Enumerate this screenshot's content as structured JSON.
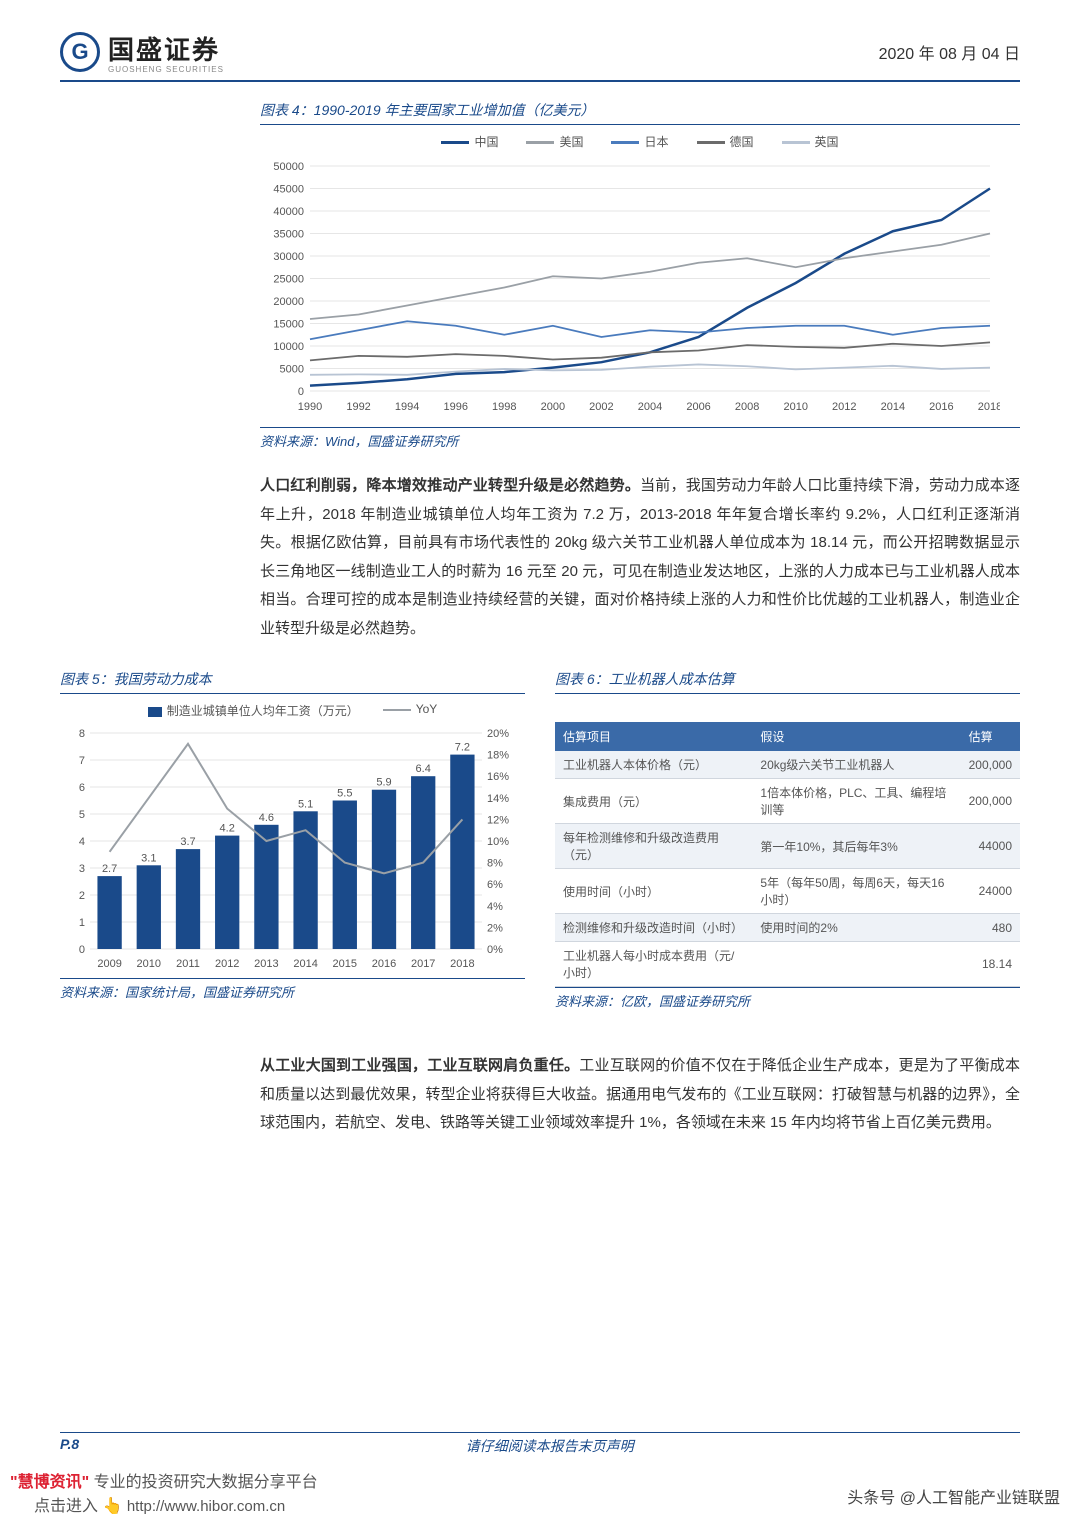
{
  "header": {
    "company": "国盛证券",
    "company_sub": "GUOSHENG SECURITIES",
    "logo_letter": "G",
    "date": "2020 年 08 月 04 日"
  },
  "chart4": {
    "title": "图表 4：1990-2019 年主要国家工业增加值（亿美元）",
    "type": "line",
    "legend": [
      "中国",
      "美国",
      "日本",
      "德国",
      "英国"
    ],
    "years": [
      1990,
      1992,
      1994,
      1996,
      1998,
      2000,
      2002,
      2004,
      2006,
      2008,
      2010,
      2012,
      2014,
      2016,
      2018
    ],
    "ylim": [
      0,
      50000
    ],
    "ytick_step": 5000,
    "colors": {
      "中国": "#1a4a8a",
      "美国": "#9aa0a6",
      "日本": "#4a7bbd",
      "德国": "#6b6b6b",
      "英国": "#b8c4d4"
    },
    "background_color": "#ffffff",
    "grid_color": "#e6e6e6",
    "series": {
      "中国": [
        1200,
        1800,
        2600,
        3800,
        4200,
        5200,
        6400,
        8600,
        12000,
        18500,
        24000,
        30500,
        35500,
        38000,
        45000
      ],
      "美国": [
        16000,
        17000,
        19000,
        21000,
        23000,
        25500,
        25000,
        26500,
        28500,
        29500,
        27500,
        29500,
        31000,
        32500,
        35000
      ],
      "日本": [
        11500,
        13500,
        15500,
        14500,
        12500,
        14500,
        12000,
        13500,
        13000,
        14000,
        14500,
        14500,
        12500,
        14000,
        14500
      ],
      "德国": [
        6800,
        7800,
        7600,
        8200,
        7800,
        7000,
        7400,
        8600,
        9000,
        10200,
        9800,
        9600,
        10500,
        10000,
        10800
      ],
      "英国": [
        3600,
        3700,
        3600,
        4300,
        4900,
        4600,
        4700,
        5400,
        5900,
        5500,
        4800,
        5200,
        5600,
        4900,
        5200
      ]
    },
    "source": "资料来源：Wind，国盛证券研究所"
  },
  "para1": {
    "bold": "人口红利削弱，降本增效推动产业转型升级是必然趋势。",
    "text": "当前，我国劳动力年龄人口比重持续下滑，劳动力成本逐年上升，2018 年制造业城镇单位人均年工资为 7.2 万，2013-2018 年年复合增长率约 9.2%，人口红利正逐渐消失。根据亿欧估算，目前具有市场代表性的 20kg 级六关节工业机器人单位成本为 18.14 元，而公开招聘数据显示长三角地区一线制造业工人的时薪为 16 元至 20 元，可见在制造业发达地区，上涨的人力成本已与工业机器人成本相当。合理可控的成本是制造业持续经营的关键，面对价格持续上涨的人力和性价比优越的工业机器人，制造业企业转型升级是必然趋势。"
  },
  "chart5": {
    "title": "图表 5：我国劳动力成本",
    "type": "bar+line",
    "legend_bar": "制造业城镇单位人均年工资（万元）",
    "legend_line": "YoY",
    "years": [
      "2009",
      "2010",
      "2011",
      "2012",
      "2013",
      "2014",
      "2015",
      "2016",
      "2017",
      "2018"
    ],
    "bar_values": [
      2.7,
      3.1,
      3.7,
      4.2,
      4.6,
      5.1,
      5.5,
      5.9,
      6.4,
      7.2
    ],
    "yoy_values": [
      9,
      14,
      19,
      13,
      10,
      11,
      8,
      7,
      8,
      12
    ],
    "ylim_left": [
      0,
      8
    ],
    "ytick_left": 1,
    "ylim_right": [
      0,
      20
    ],
    "ytick_right": 2,
    "bar_color": "#1a4a8a",
    "line_color": "#9aa0a6",
    "source": "资料来源：国家统计局，国盛证券研究所"
  },
  "chart6": {
    "title": "图表 6：工业机器人成本估算",
    "headers": [
      "估算项目",
      "假设",
      "估算"
    ],
    "rows": [
      [
        "工业机器人本体价格（元）",
        "20kg级六关节工业机器人",
        "200,000"
      ],
      [
        "集成费用（元）",
        "1倍本体价格，PLC、工具、编程培训等",
        "200,000"
      ],
      [
        "每年检测维修和升级改造费用（元）",
        "第一年10%，其后每年3%",
        "44000"
      ],
      [
        "使用时间（小时）",
        "5年（每年50周，每周6天，每天16小时）",
        "24000"
      ],
      [
        "检测维修和升级改造时间（小时）",
        "使用时间的2%",
        "480"
      ],
      [
        "工业机器人每小时成本费用（元/小时）",
        "",
        "18.14"
      ]
    ],
    "header_bg": "#3a6aa8",
    "source": "资料来源：亿欧，国盛证券研究所"
  },
  "para2": {
    "bold": "从工业大国到工业强国，工业互联网肩负重任。",
    "text": "工业互联网的价值不仅在于降低企业生产成本，更是为了平衡成本和质量以达到最优效果，转型企业将获得巨大收益。据通用电气发布的《工业互联网：打破智慧与机器的边界》，全球范围内，若航空、发电、铁路等关键工业领域效率提升 1%，各领域在未来 15 年内均将节省上百亿美元费用。"
  },
  "footer": {
    "page": "P.8",
    "disclaimer": "请仔细阅读本报告末页声明"
  },
  "watermark": {
    "brand": "\"慧博资讯\"",
    "slogan": "专业的投资研究大数据分享平台",
    "cta": "点击进入",
    "url": "http://www.hibor.com.cn"
  },
  "attrib": "头条号 @人工智能产业链联盟"
}
